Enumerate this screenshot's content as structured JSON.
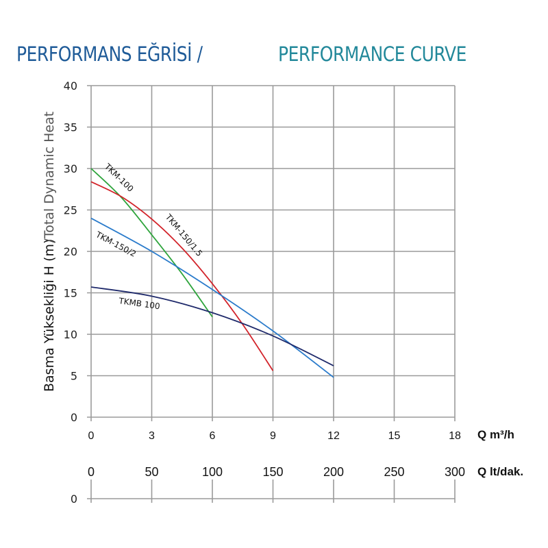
{
  "header": {
    "title_tr": "PERFORMANS EĞRİSİ /",
    "title_en": "PERFORMANCE CURVE",
    "title_tr_color": "#1f5b98",
    "title_en_color": "#22889a"
  },
  "chart_data": {
    "type": "line",
    "title": "PERFORMANS EĞRİSİ / PERFORMANCE CURVE",
    "ylabel_tr": "Basma Yüksekliği H (m)",
    "ylabel_en": "/Total Dynamic Heat",
    "xlabel": "Q m³/h",
    "xlabel_secondary": "Q lt/dak.",
    "xlim": [
      0,
      18
    ],
    "ylim": [
      0,
      40
    ],
    "x_ticks": [
      "0",
      "3",
      "6",
      "9",
      "12",
      "15",
      "18"
    ],
    "y_ticks": [
      "0",
      "5",
      "10",
      "15",
      "20",
      "25",
      "30",
      "35",
      "40"
    ],
    "x2_ticks": [
      "0",
      "50",
      "100",
      "150",
      "200",
      "250",
      "300"
    ],
    "x2_zero_label": "0",
    "grid": true,
    "legend": "inline-labels",
    "series": [
      {
        "name": "TKM-100",
        "color": "#2ea43c",
        "x": [
          0,
          1.5,
          3,
          4.5,
          6
        ],
        "y": [
          30,
          26.5,
          22,
          17.3,
          12.1
        ]
      },
      {
        "name": "TKM-150/1.5",
        "color": "#d2232a",
        "x": [
          0,
          1.5,
          3,
          4.5,
          6,
          7.5,
          9
        ],
        "y": [
          28.4,
          26.6,
          23.9,
          20.4,
          16.1,
          11.2,
          5.6
        ]
      },
      {
        "name": "TKM-150/2",
        "color": "#2a7bcb",
        "x": [
          0,
          3,
          6,
          9,
          12
        ],
        "y": [
          24,
          20,
          15.4,
          10.4,
          4.8
        ]
      },
      {
        "name": "TKMB 100",
        "color": "#1f2a6b",
        "x": [
          0,
          3,
          6,
          9,
          12
        ],
        "y": [
          15.7,
          14.6,
          12.6,
          9.8,
          6.2
        ]
      }
    ]
  }
}
